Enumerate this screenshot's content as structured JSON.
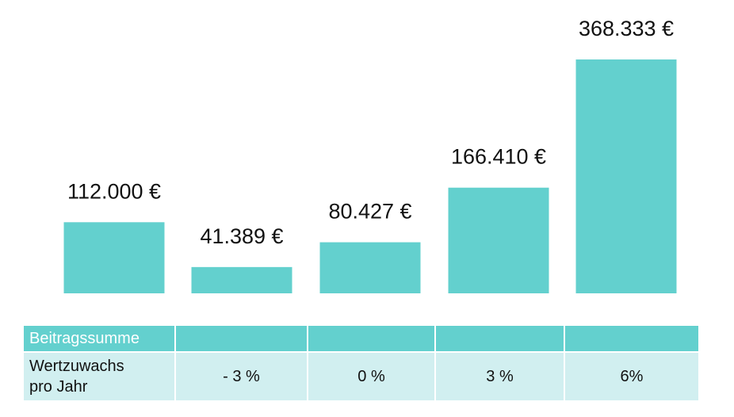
{
  "chart_data": {
    "type": "bar",
    "categories": [
      "Beitragssumme",
      "- 3 %",
      "0 %",
      "3 %",
      "6%"
    ],
    "values": [
      112000,
      41389,
      80427,
      166410,
      368333
    ],
    "value_labels": [
      "112.000 €",
      "41.389 €",
      "80.427 €",
      "166.410 €",
      "368.333 €"
    ],
    "bar_color": "#63d0ce",
    "grid": false,
    "legend": "none"
  },
  "table": {
    "header_label": "Beitragssumme",
    "row_label": "Wertzuwachs\npro Jahr",
    "rates": [
      "- 3 %",
      "0 %",
      "3 %",
      "6%"
    ]
  },
  "colors": {
    "header_bg": "#63d0ce",
    "row_bg": "#d1eff0"
  }
}
